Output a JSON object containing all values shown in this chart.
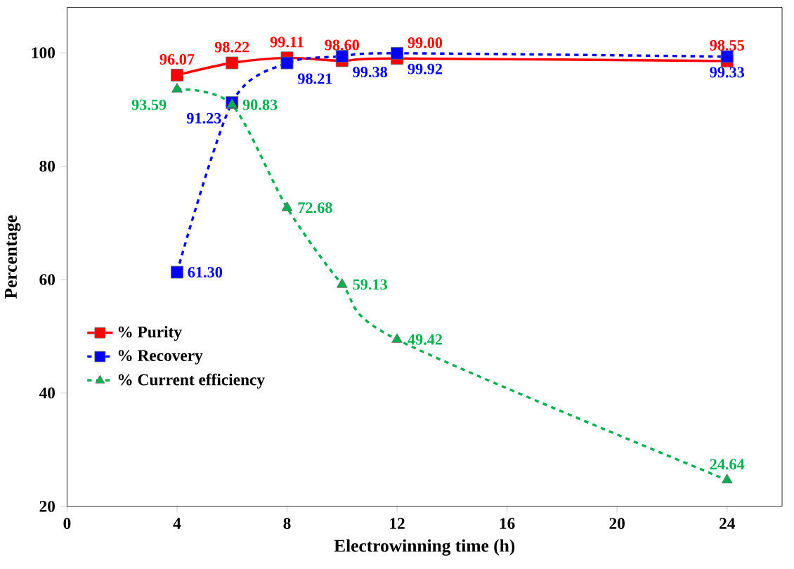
{
  "chart_data": {
    "type": "line",
    "xlabel": "Electrowinning time (h)",
    "ylabel": "Percentage",
    "x": [
      4,
      6,
      8,
      10,
      12,
      24
    ],
    "series": [
      {
        "name": "% Purity",
        "color": "#ff0000",
        "marker": "square",
        "line_style": "solid",
        "values": [
          96.07,
          98.22,
          99.11,
          98.6,
          99.0,
          98.55
        ],
        "value_labels": [
          "96.07",
          "98.22",
          "99.11",
          "98.60",
          "99.00",
          "98.55"
        ]
      },
      {
        "name": "% Recovery",
        "color": "#0000ff",
        "marker": "square",
        "line_style": "dashed",
        "values": [
          61.3,
          91.23,
          98.21,
          99.38,
          99.92,
          99.33
        ],
        "value_labels": [
          "61.30",
          "91.23",
          "98.21",
          "99.38",
          "99.92",
          "99.33"
        ]
      },
      {
        "name": "% Current efficiency",
        "color": "#00b050",
        "marker": "triangle",
        "line_style": "dashed",
        "values": [
          93.59,
          90.83,
          72.68,
          59.13,
          49.42,
          24.64
        ],
        "value_labels": [
          "93.59",
          "90.83",
          "72.68",
          "59.13",
          "49.42",
          "24.64"
        ]
      }
    ],
    "xlim": [
      0,
      26
    ],
    "xticks": [
      0,
      4,
      8,
      12,
      16,
      20,
      24
    ],
    "ylim": [
      20,
      108
    ],
    "yticks": [
      20,
      40,
      60,
      80,
      100
    ],
    "legend": "left",
    "grid": false
  }
}
